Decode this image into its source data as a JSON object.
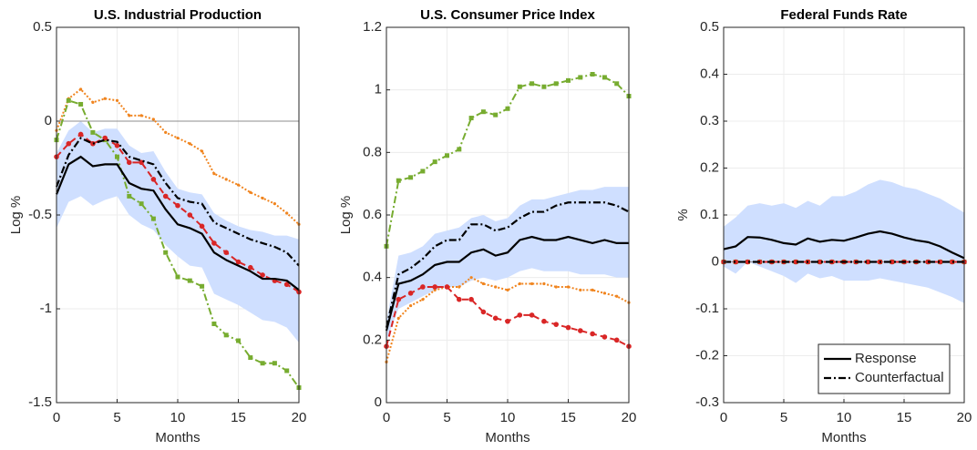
{
  "chart_data": [
    {
      "type": "line",
      "title": "U.S. Industrial Production",
      "xlabel": "Months",
      "ylabel": "Log %",
      "x": [
        0,
        1,
        2,
        3,
        4,
        5,
        6,
        7,
        8,
        9,
        10,
        11,
        12,
        13,
        14,
        15,
        16,
        17,
        18,
        19,
        20
      ],
      "xlim": [
        0,
        20
      ],
      "xticks": [
        0,
        5,
        10,
        15,
        20
      ],
      "ylim": [
        -1.5,
        0.5
      ],
      "yticks": [
        -1.5,
        -1,
        -0.5,
        0,
        0.5
      ],
      "grid": true,
      "zero_line": true,
      "band": {
        "color": "#cfdfff",
        "lower": [
          -0.57,
          -0.43,
          -0.4,
          -0.45,
          -0.42,
          -0.4,
          -0.5,
          -0.55,
          -0.58,
          -0.66,
          -0.72,
          -0.77,
          -0.78,
          -0.92,
          -0.95,
          -0.98,
          -1.02,
          -1.06,
          -1.07,
          -1.1,
          -1.18
        ],
        "upper": [
          -0.17,
          -0.05,
          0.0,
          -0.06,
          -0.04,
          -0.04,
          -0.13,
          -0.17,
          -0.16,
          -0.27,
          -0.36,
          -0.38,
          -0.39,
          -0.49,
          -0.53,
          -0.56,
          -0.58,
          -0.59,
          -0.61,
          -0.61,
          -0.63
        ]
      },
      "series": [
        {
          "color": "#f0841e",
          "style": "dotted",
          "marker": "dot",
          "values": [
            -0.05,
            0.12,
            0.17,
            0.1,
            0.12,
            0.11,
            0.03,
            0.03,
            0.01,
            -0.06,
            -0.09,
            -0.12,
            -0.16,
            -0.28,
            -0.31,
            -0.34,
            -0.38,
            -0.41,
            -0.44,
            -0.49,
            -0.55
          ]
        },
        {
          "color": "#77ac30",
          "style": "dashdot",
          "marker": "square",
          "values": [
            -0.1,
            0.11,
            0.09,
            -0.06,
            -0.1,
            -0.19,
            -0.4,
            -0.44,
            -0.52,
            -0.7,
            -0.83,
            -0.85,
            -0.88,
            -1.08,
            -1.14,
            -1.17,
            -1.26,
            -1.29,
            -1.29,
            -1.33,
            -1.42
          ]
        },
        {
          "color": "#d92626",
          "style": "dashed",
          "marker": "circle",
          "values": [
            -0.19,
            -0.12,
            -0.07,
            -0.12,
            -0.09,
            -0.13,
            -0.22,
            -0.22,
            -0.31,
            -0.4,
            -0.45,
            -0.5,
            -0.56,
            -0.65,
            -0.7,
            -0.75,
            -0.78,
            -0.82,
            -0.85,
            -0.87,
            -0.91
          ]
        },
        {
          "color": "#000000",
          "style": "dashdot",
          "values": [
            -0.35,
            -0.18,
            -0.09,
            -0.12,
            -0.1,
            -0.11,
            -0.19,
            -0.21,
            -0.23,
            -0.33,
            -0.41,
            -0.43,
            -0.44,
            -0.54,
            -0.57,
            -0.6,
            -0.63,
            -0.65,
            -0.67,
            -0.7,
            -0.77
          ]
        },
        {
          "color": "#000000",
          "style": "solid",
          "values": [
            -0.39,
            -0.23,
            -0.19,
            -0.24,
            -0.23,
            -0.23,
            -0.33,
            -0.36,
            -0.37,
            -0.47,
            -0.55,
            -0.57,
            -0.6,
            -0.7,
            -0.74,
            -0.77,
            -0.8,
            -0.84,
            -0.84,
            -0.85,
            -0.9
          ]
        }
      ]
    },
    {
      "type": "line",
      "title": "U.S. Consumer Price Index",
      "xlabel": "Months",
      "ylabel": "Log %",
      "x": [
        0,
        1,
        2,
        3,
        4,
        5,
        6,
        7,
        8,
        9,
        10,
        11,
        12,
        13,
        14,
        15,
        16,
        17,
        18,
        19,
        20
      ],
      "xlim": [
        0,
        20
      ],
      "xticks": [
        0,
        5,
        10,
        15,
        20
      ],
      "ylim": [
        0,
        1.2
      ],
      "yticks": [
        0,
        0.2,
        0.4,
        0.6,
        0.8,
        1,
        1.2
      ],
      "grid": true,
      "band": {
        "color": "#cfdfff",
        "lower": [
          0.2,
          0.3,
          0.32,
          0.34,
          0.36,
          0.37,
          0.37,
          0.39,
          0.4,
          0.39,
          0.4,
          0.42,
          0.43,
          0.42,
          0.42,
          0.42,
          0.41,
          0.41,
          0.41,
          0.4,
          0.4
        ],
        "upper": [
          0.26,
          0.47,
          0.48,
          0.5,
          0.54,
          0.55,
          0.56,
          0.59,
          0.6,
          0.58,
          0.59,
          0.63,
          0.65,
          0.65,
          0.66,
          0.67,
          0.68,
          0.68,
          0.69,
          0.69,
          0.69
        ]
      },
      "series": [
        {
          "color": "#f0841e",
          "style": "dotted",
          "marker": "dot",
          "values": [
            0.13,
            0.27,
            0.31,
            0.33,
            0.36,
            0.37,
            0.37,
            0.4,
            0.38,
            0.37,
            0.36,
            0.38,
            0.38,
            0.38,
            0.37,
            0.37,
            0.36,
            0.36,
            0.35,
            0.34,
            0.32
          ]
        },
        {
          "color": "#77ac30",
          "style": "dashdot",
          "marker": "square",
          "values": [
            0.5,
            0.71,
            0.72,
            0.74,
            0.77,
            0.79,
            0.81,
            0.91,
            0.93,
            0.92,
            0.94,
            1.01,
            1.02,
            1.01,
            1.02,
            1.03,
            1.04,
            1.05,
            1.04,
            1.02,
            0.98
          ]
        },
        {
          "color": "#d92626",
          "style": "dashed",
          "marker": "circle",
          "values": [
            0.18,
            0.33,
            0.35,
            0.37,
            0.37,
            0.37,
            0.33,
            0.33,
            0.29,
            0.27,
            0.26,
            0.28,
            0.28,
            0.26,
            0.25,
            0.24,
            0.23,
            0.22,
            0.21,
            0.2,
            0.18
          ]
        },
        {
          "color": "#000000",
          "style": "dashdot",
          "values": [
            0.24,
            0.41,
            0.43,
            0.46,
            0.5,
            0.52,
            0.52,
            0.57,
            0.57,
            0.55,
            0.56,
            0.59,
            0.61,
            0.61,
            0.63,
            0.64,
            0.64,
            0.64,
            0.64,
            0.63,
            0.61
          ]
        },
        {
          "color": "#000000",
          "style": "solid",
          "values": [
            0.23,
            0.38,
            0.39,
            0.41,
            0.44,
            0.45,
            0.45,
            0.48,
            0.49,
            0.47,
            0.48,
            0.52,
            0.53,
            0.52,
            0.52,
            0.53,
            0.52,
            0.51,
            0.52,
            0.51,
            0.51
          ]
        }
      ]
    },
    {
      "type": "line",
      "title": "Federal Funds Rate",
      "xlabel": "Months",
      "ylabel": "%",
      "x": [
        0,
        1,
        2,
        3,
        4,
        5,
        6,
        7,
        8,
        9,
        10,
        11,
        12,
        13,
        14,
        15,
        16,
        17,
        18,
        19,
        20
      ],
      "xlim": [
        0,
        20
      ],
      "xticks": [
        0,
        5,
        10,
        15,
        20
      ],
      "ylim": [
        -0.3,
        0.5
      ],
      "yticks": [
        -0.3,
        -0.2,
        -0.1,
        0,
        0.1,
        0.2,
        0.3,
        0.4,
        0.5
      ],
      "grid": true,
      "zero_line": true,
      "legend": "southeast",
      "band": {
        "color": "#cfdfff",
        "lower": [
          -0.01,
          -0.025,
          0.0,
          -0.01,
          -0.02,
          -0.03,
          -0.045,
          -0.025,
          -0.035,
          -0.03,
          -0.04,
          -0.04,
          -0.04,
          -0.035,
          -0.04,
          -0.045,
          -0.05,
          -0.055,
          -0.065,
          -0.075,
          -0.088
        ],
        "upper": [
          0.075,
          0.095,
          0.12,
          0.125,
          0.12,
          0.125,
          0.115,
          0.13,
          0.12,
          0.14,
          0.14,
          0.15,
          0.165,
          0.175,
          0.17,
          0.16,
          0.155,
          0.145,
          0.135,
          0.12,
          0.105
        ]
      },
      "series": [
        {
          "color": "#77ac30",
          "style": "dashdot",
          "marker": "square",
          "values": [
            0,
            0,
            0,
            0,
            0,
            0,
            0,
            0,
            0,
            0,
            0,
            0,
            0,
            0,
            0,
            0,
            0,
            0,
            0,
            0,
            0
          ]
        },
        {
          "color": "#d92626",
          "style": "dashed",
          "marker": "circle",
          "values": [
            0,
            0,
            0,
            0,
            0,
            0,
            0,
            0,
            0,
            0,
            0,
            0,
            0,
            0,
            0,
            0,
            0,
            0,
            0,
            0,
            0
          ]
        },
        {
          "name": "Response",
          "color": "#000000",
          "style": "solid",
          "values": [
            0.027,
            0.033,
            0.053,
            0.052,
            0.047,
            0.04,
            0.037,
            0.05,
            0.043,
            0.047,
            0.045,
            0.052,
            0.06,
            0.065,
            0.06,
            0.052,
            0.046,
            0.042,
            0.033,
            0.02,
            0.008
          ]
        },
        {
          "name": "Counterfactual",
          "color": "#000000",
          "style": "dashdot",
          "values": [
            0,
            0,
            0,
            0,
            0,
            0,
            0,
            0,
            0,
            0,
            0,
            0,
            0,
            0,
            0,
            0,
            0,
            0,
            0,
            0,
            0
          ]
        }
      ]
    }
  ]
}
